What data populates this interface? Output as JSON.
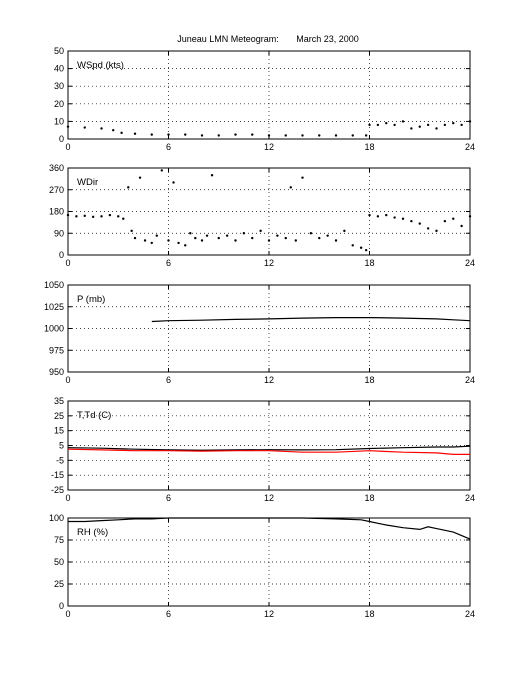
{
  "title": "Juneau LMN Meteogram:       March 23, 2000",
  "chart_data": [
    {
      "type": "scatter",
      "label": "WSpd (kts)",
      "xlim": [
        0,
        24
      ],
      "ylim": [
        0,
        50
      ],
      "xticks": [
        0,
        6,
        12,
        18,
        24
      ],
      "yticks": [
        0,
        10,
        20,
        30,
        40,
        50
      ],
      "grid": true,
      "series": [
        {
          "color": "#000000",
          "x": [
            0,
            1,
            2,
            2.7,
            3.2,
            4,
            5,
            6,
            7,
            8,
            9,
            10,
            11,
            12,
            13,
            14,
            15,
            16,
            17,
            17.8,
            18,
            18.5,
            19,
            19.5,
            20,
            20.5,
            21,
            21.5,
            22,
            22.5,
            23,
            23.5,
            24
          ],
          "y": [
            7,
            6.5,
            6,
            5,
            3.5,
            3,
            2.5,
            2.5,
            2.5,
            2,
            2,
            2.5,
            2.5,
            2,
            2,
            2,
            2,
            2,
            2,
            2,
            8,
            8,
            9,
            8,
            10,
            6,
            7,
            8,
            6,
            8,
            9,
            8,
            10
          ]
        }
      ]
    },
    {
      "type": "scatter",
      "label": "WDir",
      "xlim": [
        0,
        24
      ],
      "ylim": [
        0,
        360
      ],
      "xticks": [
        0,
        6,
        12,
        18,
        24
      ],
      "yticks": [
        0,
        90,
        180,
        270,
        360
      ],
      "grid": true,
      "series": [
        {
          "color": "#000000",
          "x": [
            0,
            0.5,
            1,
            1.5,
            2,
            2.5,
            3,
            3.3,
            3.6,
            3.8,
            4,
            4.3,
            4.6,
            5,
            5.3,
            5.6,
            6,
            6.3,
            6.6,
            7,
            7.3,
            7.6,
            8,
            8.3,
            8.6,
            9,
            9.5,
            10,
            10.5,
            11,
            11.5,
            12,
            12.5,
            13,
            13.3,
            13.6,
            14,
            14.5,
            15,
            15.5,
            16,
            16.5,
            17,
            17.5,
            17.8,
            18,
            18.5,
            19,
            19.5,
            20,
            20.5,
            21,
            21.5,
            22,
            22.5,
            23,
            23.5,
            24
          ],
          "y": [
            165,
            160,
            162,
            158,
            160,
            165,
            160,
            150,
            280,
            100,
            70,
            320,
            60,
            50,
            80,
            350,
            60,
            300,
            50,
            40,
            90,
            70,
            60,
            80,
            330,
            70,
            80,
            60,
            90,
            70,
            100,
            60,
            80,
            70,
            280,
            60,
            320,
            90,
            70,
            80,
            60,
            100,
            40,
            30,
            20,
            165,
            160,
            165,
            155,
            150,
            140,
            130,
            110,
            100,
            140,
            150,
            120,
            160
          ]
        }
      ]
    },
    {
      "type": "line",
      "label": "P (mb)",
      "xlim": [
        0,
        24
      ],
      "ylim": [
        950,
        1050
      ],
      "xticks": [
        0,
        6,
        12,
        18,
        24
      ],
      "yticks": [
        950,
        975,
        1000,
        1025,
        1050
      ],
      "grid": true,
      "series": [
        {
          "color": "#000000",
          "x": [
            5,
            6,
            8,
            10,
            12,
            14,
            16,
            18,
            20,
            22,
            23,
            24
          ],
          "y": [
            1008,
            1009,
            1009.5,
            1010.5,
            1011,
            1012,
            1012.5,
            1012.5,
            1012,
            1011,
            1010,
            1009
          ]
        }
      ]
    },
    {
      "type": "line",
      "label": "T,Td (C)",
      "xlim": [
        0,
        24
      ],
      "ylim": [
        -25,
        35
      ],
      "xticks": [
        0,
        6,
        12,
        18,
        24
      ],
      "yticks": [
        -25,
        -15,
        -5,
        5,
        15,
        25,
        35
      ],
      "grid": true,
      "series": [
        {
          "color": "#000000",
          "x": [
            0,
            2,
            4,
            6,
            8,
            10,
            12,
            14,
            16,
            18,
            20,
            22,
            23,
            24
          ],
          "y": [
            3.5,
            3.2,
            2.5,
            2.0,
            1.8,
            2.0,
            2.2,
            2.0,
            2.2,
            3.0,
            3.5,
            4.0,
            4.0,
            4.5
          ]
        },
        {
          "color": "#ff0000",
          "x": [
            0,
            2,
            4,
            6,
            8,
            10,
            12,
            14,
            16,
            18,
            20,
            22,
            23,
            24
          ],
          "y": [
            2.5,
            2.0,
            1.5,
            1.5,
            1.2,
            1.5,
            1.5,
            0.5,
            0.5,
            1.5,
            0.5,
            0.0,
            -1.0,
            -1.0
          ]
        }
      ]
    },
    {
      "type": "line",
      "label": "RH (%)",
      "xlim": [
        0,
        24
      ],
      "ylim": [
        0,
        100
      ],
      "xticks": [
        0,
        6,
        12,
        18,
        24
      ],
      "yticks": [
        0,
        25,
        50,
        75,
        100
      ],
      "grid": true,
      "series": [
        {
          "color": "#000000",
          "x": [
            0,
            1,
            2,
            3,
            4,
            5,
            6,
            8,
            10,
            12,
            14,
            16,
            17.5,
            18,
            18.5,
            19,
            20,
            21,
            21.5,
            22,
            22.5,
            23,
            23.5,
            24
          ],
          "y": [
            96,
            96,
            97,
            98,
            99,
            99,
            100,
            100,
            100,
            100,
            100,
            99,
            98,
            96,
            94,
            92,
            89,
            87,
            90,
            88,
            86,
            84,
            80,
            76
          ]
        }
      ]
    }
  ]
}
